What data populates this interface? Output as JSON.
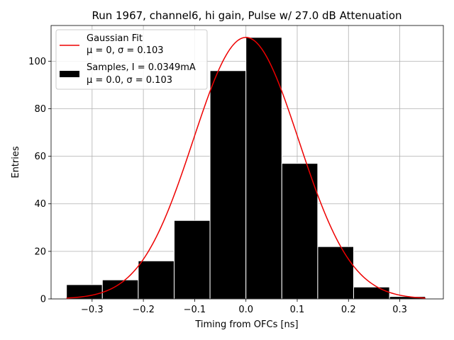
{
  "chart_data": {
    "type": "bar",
    "title": "Run 1967, channel6, hi gain, Pulse w/ 27.0 dB Attenuation",
    "xlabel": "Timing from OFCs [ns]",
    "ylabel": "Entries",
    "xlim": [
      -0.38,
      0.385
    ],
    "ylim": [
      0,
      115
    ],
    "grid": true,
    "legend_position": "top-left",
    "x_ticks": [
      -0.3,
      -0.2,
      -0.1,
      0.0,
      0.1,
      0.2,
      0.3
    ],
    "x_tick_labels": [
      "−0.3",
      "−0.2",
      "−0.1",
      "0.0",
      "0.1",
      "0.2",
      "0.3"
    ],
    "y_ticks": [
      0,
      20,
      40,
      60,
      80,
      100
    ],
    "y_tick_labels": [
      "0",
      "20",
      "40",
      "60",
      "80",
      "100"
    ],
    "bin_edges": [
      -0.35,
      -0.28,
      -0.21,
      -0.14,
      -0.07,
      0.0,
      0.07,
      0.14,
      0.21,
      0.28,
      0.35
    ],
    "values": [
      6,
      8,
      16,
      33,
      96,
      110,
      57,
      22,
      5,
      1
    ],
    "fit": {
      "mu": 0.0,
      "sigma": 0.103,
      "amplitude": 110,
      "x_range": [
        -0.35,
        0.35
      ]
    },
    "legend": [
      {
        "line1": "Gaussian Fit",
        "line2": "μ = 0, σ = 0.103"
      },
      {
        "line1": "Samples, I = 0.0349mA",
        "line2": "μ = 0.0, σ = 0.103"
      }
    ],
    "colors": {
      "bars": "#000000",
      "bar_edge": "#ffffff",
      "fit": "#ee0000",
      "grid": "#b0b0b0"
    }
  }
}
